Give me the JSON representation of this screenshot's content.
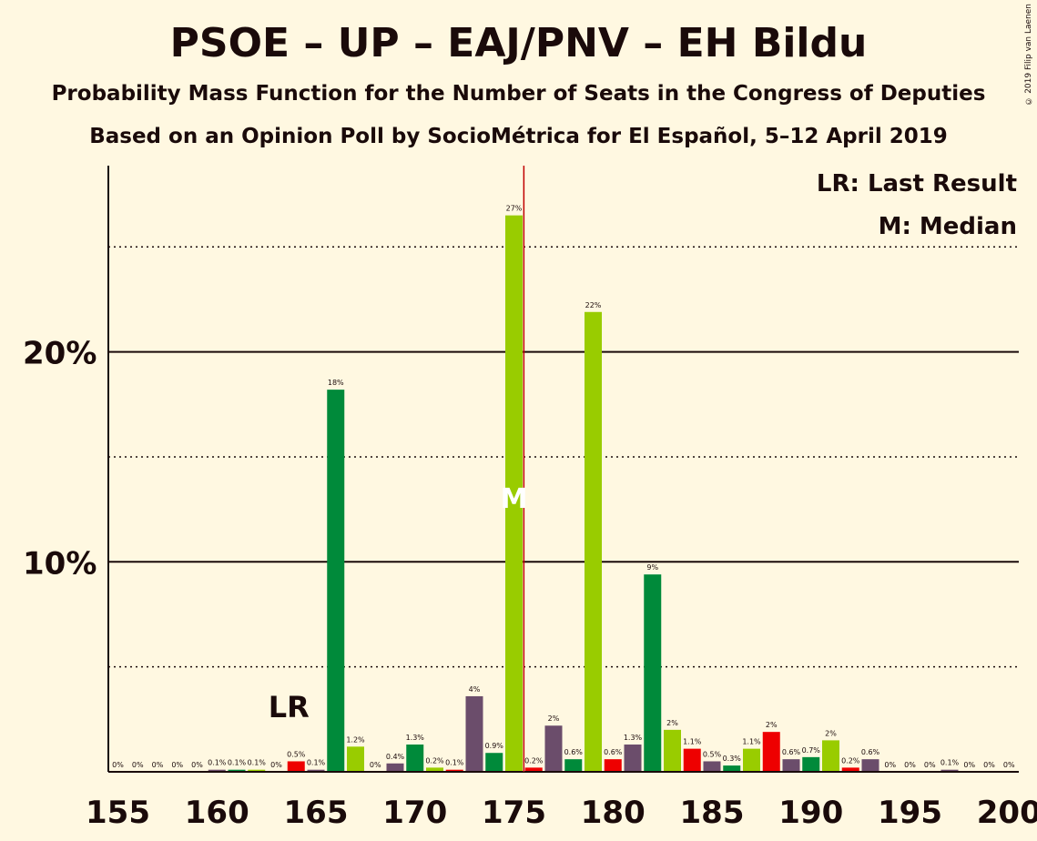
{
  "title": "PSOE – UP – EAJ/PNV – EH Bildu",
  "subtitle1": "Probability Mass Function for the Number of Seats in the Congress of Deputies",
  "subtitle2": "Based on an Opinion Poll by SocioMétrica for El Español, 5–12 April 2019",
  "copyright": "© 2019 Filip van Laenen",
  "legend": {
    "last_result": "LR: Last Result",
    "median": "M: Median"
  },
  "markers": {
    "lr_label": "LR",
    "median_label": "M"
  },
  "colors": {
    "background": "#FFF8E1",
    "red": "#EE0000",
    "purple": "#6B4D6B",
    "darkgreen": "#008A3A",
    "lime": "#99CC00",
    "majority_line": "#C00000"
  },
  "chart_data": {
    "type": "bar",
    "x": [
      155,
      156,
      157,
      158,
      159,
      160,
      161,
      162,
      163,
      164,
      165,
      166,
      167,
      168,
      169,
      170,
      171,
      172,
      173,
      174,
      175,
      176,
      177,
      178,
      179,
      180,
      181,
      182,
      183,
      184,
      185,
      186,
      187,
      188,
      189,
      190,
      191,
      192,
      193,
      194,
      195,
      196,
      197,
      198,
      199,
      200
    ],
    "values": [
      0,
      0,
      0,
      0,
      0,
      0.1,
      0.1,
      0.1,
      0,
      0.5,
      0.1,
      18.2,
      1.2,
      0,
      0.4,
      1.3,
      0.2,
      0.1,
      3.6,
      0.9,
      26.5,
      0.2,
      2.2,
      0.6,
      21.9,
      0.6,
      1.3,
      9.4,
      2.0,
      1.1,
      0.5,
      0.3,
      1.1,
      1.9,
      0.6,
      0.7,
      1.5,
      0.2,
      0.6,
      0,
      0,
      0,
      0.1,
      0,
      0,
      0
    ],
    "value_labels": [
      "0%",
      "0%",
      "0%",
      "0%",
      "0%",
      "0.1%",
      "0.1%",
      "0.1%",
      "0%",
      "0.5%",
      "0.1%",
      "18%",
      "1.2%",
      "0%",
      "0.4%",
      "1.3%",
      "0.2%",
      "0.1%",
      "4%",
      "0.9%",
      "27%",
      "0.2%",
      "2%",
      "0.6%",
      "22%",
      "0.6%",
      "1.3%",
      "9%",
      "2%",
      "1.1%",
      "0.5%",
      "0.3%",
      "1.1%",
      "2%",
      "0.6%",
      "0.7%",
      "2%",
      "0.2%",
      "0.6%",
      "0%",
      "0%",
      "0%",
      "0.1%",
      "0%",
      "0%",
      "0%"
    ],
    "bar_colors": [
      "red",
      "purple",
      "darkgreen",
      "lime",
      "red",
      "purple",
      "darkgreen",
      "lime",
      "red",
      "red",
      "purple",
      "darkgreen",
      "lime",
      "red",
      "purple",
      "darkgreen",
      "lime",
      "red",
      "purple",
      "darkgreen",
      "lime",
      "red",
      "purple",
      "darkgreen",
      "lime",
      "red",
      "purple",
      "darkgreen",
      "lime",
      "red",
      "purple",
      "darkgreen",
      "lime",
      "red",
      "purple",
      "darkgreen",
      "lime",
      "red",
      "purple",
      "darkgreen",
      "lime",
      "red",
      "purple",
      "darkgreen",
      "lime",
      "red"
    ],
    "x_ticks": [
      155,
      160,
      165,
      170,
      175,
      180,
      185,
      190,
      195,
      200
    ],
    "x_tick_labels": [
      "155",
      "160",
      "165",
      "170",
      "175",
      "180",
      "185",
      "190",
      "195",
      "200"
    ],
    "y_ticks_solid": [
      10,
      20
    ],
    "y_tick_labels": [
      "10%",
      "20%"
    ],
    "y_ticks_dotted": [
      5,
      15,
      25
    ],
    "ylim": [
      0,
      28.9
    ],
    "last_result_x": 164,
    "median_x": 175,
    "majority_x": 175.5,
    "xlabel": "",
    "ylabel": ""
  }
}
